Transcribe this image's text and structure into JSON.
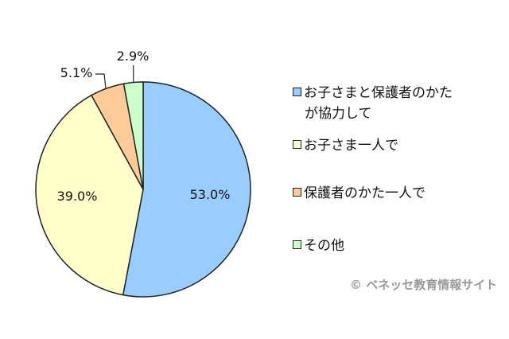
{
  "chart_data": {
    "type": "pie",
    "title": "",
    "start_angle_deg": 0,
    "direction": "clockwise",
    "categories": [
      "お子さまと保護者のかたが協力して",
      "お子さま一人で",
      "保護者のかた一人で",
      "その他"
    ],
    "values": [
      53.0,
      39.0,
      5.1,
      2.9
    ],
    "labels": [
      "53.0%",
      "39.0%",
      "5.1%",
      "2.9%"
    ],
    "colors": [
      "#99ccff",
      "#ffffcc",
      "#ffcc99",
      "#ccffcc"
    ],
    "legend_position": "right"
  },
  "legend": {
    "items": [
      {
        "line1": "お子さまと保護者のかた",
        "line2": "が協力して",
        "color": "#99ccff"
      },
      {
        "line1": "お子さま一人で",
        "color": "#ffffcc"
      },
      {
        "line1": "保護者のかた一人で",
        "color": "#ffcc99"
      },
      {
        "line1": "その他",
        "color": "#ccffcc"
      }
    ]
  },
  "copyright": "© ベネッセ教育情報サイト"
}
